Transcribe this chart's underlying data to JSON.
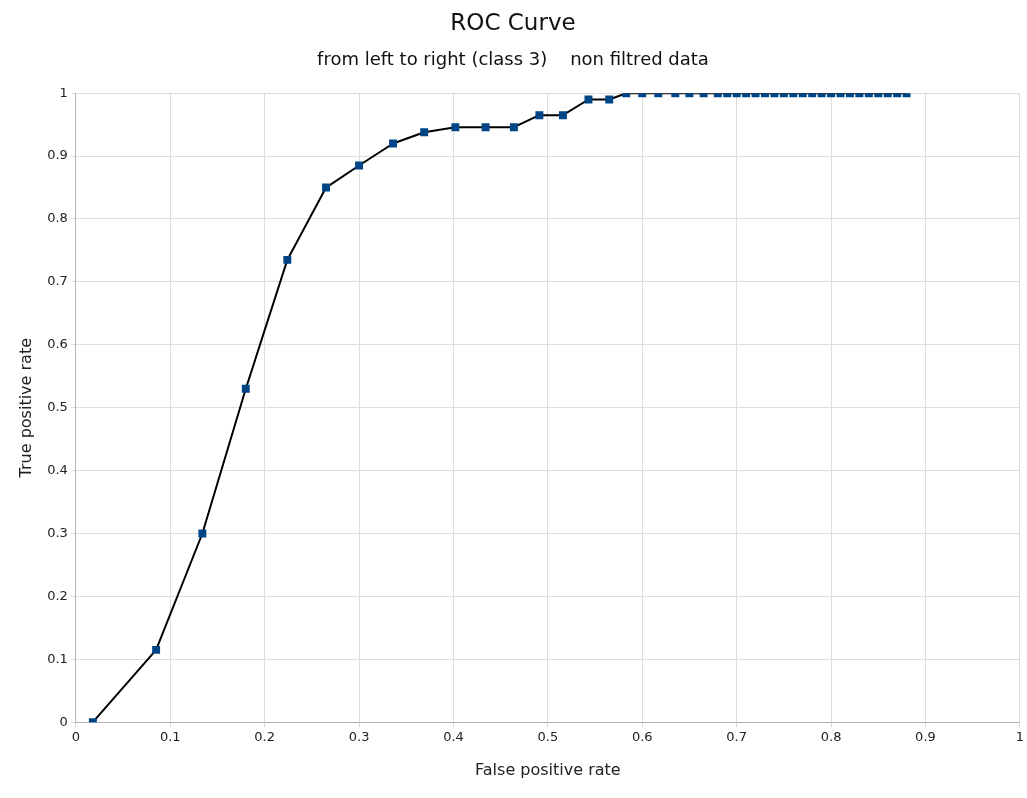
{
  "chart_data": {
    "type": "line",
    "title": "ROC Curve",
    "subtitle": "from left to right (class 3)    non filtred data",
    "xlabel": "False positive rate",
    "ylabel": "True positive rate",
    "x": [
      0.018,
      0.085,
      0.134,
      0.18,
      0.224,
      0.265,
      0.3,
      0.336,
      0.369,
      0.402,
      0.434,
      0.464,
      0.491,
      0.516,
      0.543,
      0.565,
      0.583,
      0.6,
      0.617,
      0.635,
      0.65,
      0.665,
      0.68,
      0.69,
      0.7,
      0.71,
      0.72,
      0.73,
      0.74,
      0.75,
      0.76,
      0.77,
      0.78,
      0.79,
      0.8,
      0.81,
      0.82,
      0.83,
      0.84,
      0.85,
      0.86,
      0.87,
      0.88
    ],
    "series": [
      {
        "color": "#004586",
        "values": [
          0,
          0.115,
          0.3,
          0.53,
          0.735,
          0.85,
          0.885,
          0.92,
          0.938,
          0.946,
          0.946,
          0.946,
          0.965,
          0.965,
          0.99,
          0.99,
          1,
          1,
          1,
          1,
          1,
          1,
          1,
          1,
          1,
          1,
          1,
          1,
          1,
          1,
          1,
          1,
          1,
          1,
          1,
          1,
          1,
          1,
          1,
          1,
          1,
          1,
          1
        ]
      }
    ],
    "xlim": [
      0,
      1
    ],
    "ylim": [
      0,
      1
    ],
    "xticks": [
      0,
      0.1,
      0.2,
      0.3,
      0.4,
      0.5,
      0.6,
      0.7,
      0.8,
      0.9,
      1
    ],
    "yticks": [
      0,
      0.1,
      0.2,
      0.3,
      0.4,
      0.5,
      0.6,
      0.7,
      0.8,
      0.9,
      1
    ],
    "grid": true,
    "legend": false,
    "marker": "square",
    "line_style": "solid"
  }
}
